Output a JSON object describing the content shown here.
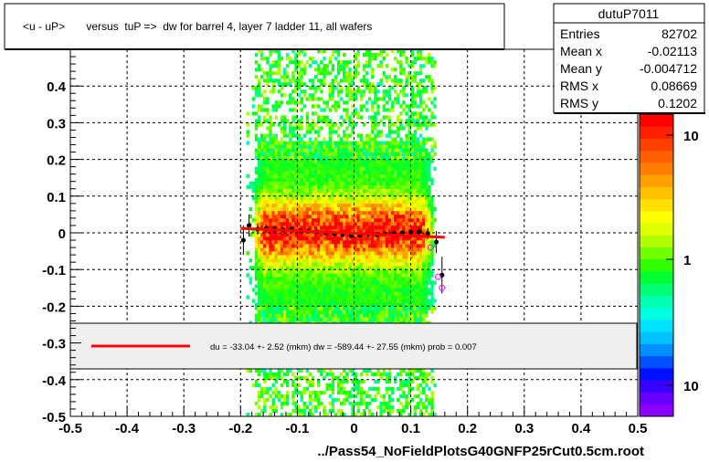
{
  "chart_data": {
    "type": "heatmap",
    "title": "<u - uP>       versus  tuP =>  dw for barrel 4, layer 7 ladder 11, all wafers",
    "xlabel": "../Pass54_NoFieldPlotsG40GNFP25rCut0.5cm.root",
    "ylabel": "",
    "xlim": [
      -0.5,
      0.5
    ],
    "ylim": [
      -0.5,
      0.5
    ],
    "grid": true,
    "x_ticks": [
      "-0.5",
      "-0.4",
      "-0.3",
      "-0.2",
      "-0.1",
      "0",
      "0.1",
      "0.2",
      "0.3",
      "0.4",
      "0.5"
    ],
    "y_ticks": [
      "-0.5",
      "-0.4",
      "-0.3",
      "-0.2",
      "-0.1",
      "0",
      "0.1",
      "0.2",
      "0.3",
      "0.4"
    ],
    "colorbar": {
      "labels": [
        "10",
        "1",
        "10"
      ],
      "scale": "log"
    },
    "stats": {
      "name": "dutuP7011",
      "rows": [
        {
          "label": "Entries",
          "value": "82702"
        },
        {
          "label": "Mean x",
          "value": "-0.02113"
        },
        {
          "label": "Mean y",
          "value": "-0.004712"
        },
        {
          "label": "RMS x",
          "value": "0.08669"
        },
        {
          "label": "RMS y",
          "value": "0.1202"
        }
      ]
    },
    "legend": {
      "text": "du =  -33.04 +-  2.52 (mkm) dw = -589.44 +- 27.55 (mkm) prob = 0.007"
    },
    "fit_line": {
      "x": [
        -0.2,
        0.16
      ],
      "y": [
        0.012,
        -0.012
      ],
      "color": "#ff0000"
    },
    "profile": {
      "x": [
        -0.195,
        -0.185,
        -0.17,
        -0.155,
        -0.14,
        -0.125,
        -0.11,
        -0.095,
        -0.08,
        -0.065,
        -0.05,
        -0.035,
        -0.02,
        -0.005,
        0.01,
        0.025,
        0.04,
        0.055,
        0.07,
        0.085,
        0.1,
        0.115,
        0.13,
        0.145,
        0.155
      ],
      "y": [
        -0.02,
        0.02,
        0.01,
        0.012,
        0.01,
        0.008,
        0.01,
        0.006,
        0.005,
        0.003,
        0.0,
        -0.003,
        -0.005,
        -0.008,
        -0.006,
        -0.004,
        -0.005,
        -0.003,
        -0.002,
        0.0,
        0.002,
        0.003,
        -0.002,
        -0.025,
        -0.115
      ],
      "err": [
        0.04,
        0.03,
        0.015,
        0.01,
        0.008,
        0.006,
        0.005,
        0.005,
        0.004,
        0.004,
        0.004,
        0.004,
        0.004,
        0.004,
        0.004,
        0.004,
        0.004,
        0.005,
        0.005,
        0.006,
        0.008,
        0.01,
        0.015,
        0.03,
        0.05
      ]
    },
    "open_points": {
      "x": [
        0.135,
        0.148,
        0.155
      ],
      "y": [
        -0.04,
        -0.12,
        -0.15
      ]
    }
  }
}
